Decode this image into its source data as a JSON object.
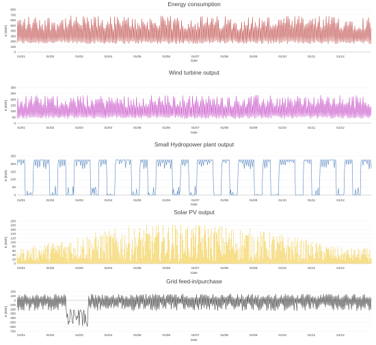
{
  "chart_data": [
    {
      "type": "line",
      "title": "Energy consumption",
      "xlabel": "Date",
      "ylabel": "E (kWh)",
      "ylim": [
        0,
        800
      ],
      "yticks": [
        0,
        100,
        200,
        300,
        400,
        500,
        600,
        700,
        800
      ],
      "xticks": [
        "01/01",
        "01/02",
        "01/03",
        "01/04",
        "01/05",
        "01/06",
        "01/07",
        "01/08",
        "01/09",
        "01/10",
        "01/11",
        "01/12"
      ],
      "grid": true,
      "series": [
        {
          "color": "#c0504d",
          "style": "oscillating",
          "min": 50,
          "max": 720,
          "typical_peak": 450
        }
      ]
    },
    {
      "type": "line",
      "title": "Wind turbine output",
      "xlabel": "Date",
      "ylabel": "E (kWh)",
      "ylim": [
        0,
        300
      ],
      "yticks": [
        0,
        50,
        100,
        150,
        200,
        250,
        300
      ],
      "xticks": [
        "01/01",
        "01/02",
        "01/03",
        "01/04",
        "01/05",
        "01/06",
        "01/07",
        "01/08",
        "01/09",
        "01/10",
        "01/11",
        "01/12"
      ],
      "grid": true,
      "series": [
        {
          "color": "#c850c8",
          "style": "oscillating",
          "min": 0,
          "max": 250,
          "typical_peak": 200
        }
      ]
    },
    {
      "type": "line",
      "title": "Small Hydropower plant output",
      "xlabel": "Date",
      "ylabel": "E (kWh)",
      "ylim": [
        0,
        250
      ],
      "yticks": [
        0,
        50,
        100,
        150,
        200,
        250
      ],
      "xticks": [
        "01/01",
        "01/02",
        "01/03",
        "01/04",
        "01/05",
        "01/06",
        "01/07",
        "01/08",
        "01/09",
        "01/10",
        "01/11",
        "01/12"
      ],
      "grid": true,
      "series": [
        {
          "color": "#4f81bd",
          "style": "plateau",
          "min": 0,
          "max": 225,
          "typical_peak": 220
        }
      ]
    },
    {
      "type": "bar",
      "title": "Solar PV output",
      "xlabel": "Date",
      "ylabel": "E (kWh)",
      "ylim": [
        0,
        200
      ],
      "yticks": [
        0,
        20,
        40,
        60,
        80,
        100,
        120,
        140,
        160,
        180,
        200
      ],
      "xticks": [
        "01/01",
        "01/02",
        "01/03",
        "01/04",
        "01/05",
        "01/06",
        "01/07",
        "01/08",
        "01/09",
        "01/10",
        "01/11",
        "01/12"
      ],
      "grid": true,
      "series": [
        {
          "color": "#f5d76e",
          "style": "seasonal",
          "min": 0,
          "max": 180,
          "typical_peak": 170
        }
      ]
    },
    {
      "type": "line",
      "title": "Grid feed-in/purchase",
      "xlabel": "Date",
      "ylabel": "E (kWh)",
      "ylim": [
        -700,
        200
      ],
      "yticks": [
        -700,
        -600,
        -500,
        -400,
        -300,
        -200,
        -100,
        0,
        100,
        200
      ],
      "xticks": [
        "01/01",
        "01/02",
        "01/03",
        "01/04",
        "01/05",
        "01/06",
        "01/07",
        "01/08",
        "01/09",
        "01/10",
        "01/11",
        "01/12"
      ],
      "grid": true,
      "series": [
        {
          "color": "#404040",
          "style": "oscillating",
          "min": -650,
          "max": 150,
          "typical_peak": 120
        }
      ]
    }
  ]
}
